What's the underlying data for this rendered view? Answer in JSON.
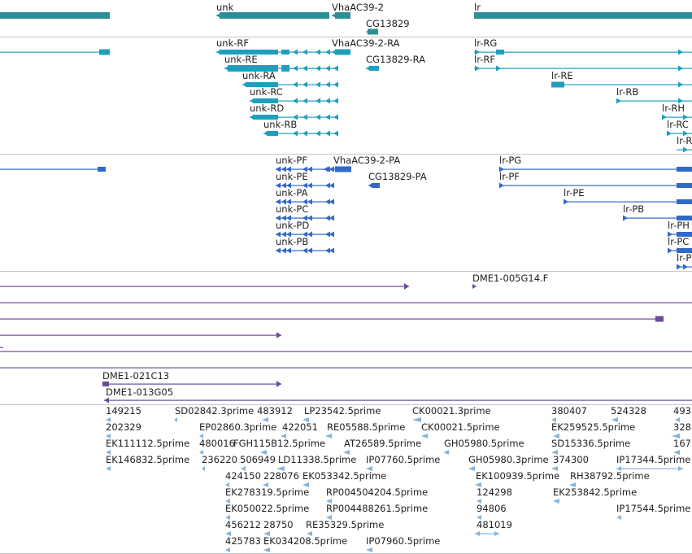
{
  "colors": {
    "gene": "#2e8e96",
    "transcript": "#1f9fbd",
    "protein": "#3169c9",
    "clone": "#6a4b9c",
    "est": "#85b4dc",
    "divider": "#c6c6c6"
  },
  "genes": [
    "unk",
    "VhaAC39-2",
    "CG13829",
    "lr"
  ],
  "transcripts": {
    "unk": [
      "unk-RF",
      "unk-RE",
      "unk-RA",
      "unk-RC",
      "unk-RD",
      "unk-RB"
    ],
    "VhaAC39_2": "VhaAC39-2-RA",
    "CG13829": "CG13829-RA",
    "lr": [
      "lr-RG",
      "lr-RF",
      "lr-RE",
      "lr-RB",
      "lr-RH",
      "lr-RC",
      "lr-R"
    ]
  },
  "proteins": {
    "unk": [
      "unk-PF",
      "unk-PE",
      "unk-PA",
      "unk-PC",
      "unk-PD",
      "unk-PB"
    ],
    "VhaAC39_2": "VhaAC39-2-PA",
    "CG13829": "CG13829-PA",
    "lr": [
      "lr-PG",
      "lr-PF",
      "lr-PE",
      "lr-PB",
      "lr-PH",
      "lr-PC",
      "lr-P"
    ]
  },
  "clones": [
    "DME1-005G14.F",
    "DME1-021C13",
    "DME1-013G05"
  ],
  "ests": [
    "149215",
    "SD02842.3prime",
    "483912",
    "LP23542.5prime",
    "CK00021.3prime",
    "380407",
    "524328",
    "493",
    "202329",
    "EP02860.3prime",
    "422051",
    "RE05588.5prime",
    "CK00021.5prime",
    "EK259525.5prime",
    "328",
    "EK111112.5prime",
    "480016",
    "FGH115B12.5prime",
    "AT26589.5prime",
    "GH05980.5prime",
    "SD15336.5prime",
    "167",
    "EK146832.5prime",
    "236220",
    "506949",
    "LD11338.5prime",
    "IP07760.5prime",
    "GH05980.3prime",
    "374300",
    "IP17344.5prime",
    "424150",
    "228076",
    "EK053342.5prime",
    "EK100939.5prime",
    "RH38792.5prime",
    "EK278319.5prime",
    "RP004504204.5prime",
    "124298",
    "EK253842.5prime",
    "EK050022.5prime",
    "RP004488261.5prime",
    "94806",
    "IP17544.5prime",
    "456212",
    "28750",
    "RE35329.5prime",
    "481019",
    "425783",
    "EK034208.5prime",
    "IP07960.5prime"
  ]
}
